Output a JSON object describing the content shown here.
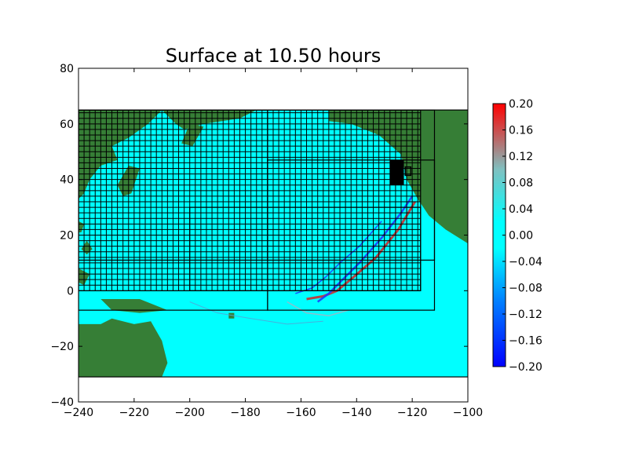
{
  "chart_data": {
    "type": "heatmap",
    "title": "Surface at 10.50 hours",
    "xlabel": "",
    "ylabel": "",
    "xlim": [
      -240,
      -100
    ],
    "ylim": [
      -40,
      80
    ],
    "x_ticks": [
      -240,
      -220,
      -200,
      -180,
      -160,
      -140,
      -120,
      -100
    ],
    "y_ticks": [
      -40,
      -20,
      0,
      20,
      40,
      60,
      80
    ],
    "x_tick_labels": [
      "−240",
      "−220",
      "−200",
      "−180",
      "−160",
      "−140",
      "−120",
      "−100"
    ],
    "y_tick_labels": [
      "−40",
      "−20",
      "0",
      "20",
      "40",
      "60",
      "80"
    ],
    "domain": {
      "x": [
        -240,
        -100
      ],
      "y": [
        -31,
        65
      ]
    },
    "colorbar": {
      "min": -0.2,
      "max": 0.2,
      "ticks": [
        -0.2,
        -0.16,
        -0.12,
        -0.08,
        -0.04,
        0.0,
        0.04,
        0.08,
        0.12,
        0.16,
        0.2
      ],
      "tick_labels": [
        "−0.20",
        "−0.16",
        "−0.12",
        "−0.08",
        "−0.04",
        "0.00",
        "0.04",
        "0.08",
        "0.12",
        "0.16",
        "0.20"
      ],
      "colors": [
        "#0000ff",
        "#0080ff",
        "#00ffff",
        "#00ffff",
        "#80c0c0",
        "#ff0000"
      ]
    },
    "colors": {
      "land": "#367e36",
      "water": "#00ffff",
      "grid": "#000000",
      "wave_pos": "#c83030",
      "wave_neg": "#1e3cff"
    },
    "refinement_grids": [
      {
        "name": "level1",
        "x": [
          -240,
          -100
        ],
        "y": [
          -31,
          65
        ]
      },
      {
        "name": "level2-west",
        "x": [
          -240,
          -172
        ],
        "y": [
          -7,
          65
        ]
      },
      {
        "name": "level2-east",
        "x": [
          -172,
          -112
        ],
        "y": [
          -7,
          65
        ]
      },
      {
        "name": "level3-west",
        "x": [
          -240,
          -172
        ],
        "y": [
          11,
          65
        ]
      },
      {
        "name": "level3-east",
        "x": [
          -172,
          -112
        ],
        "y": [
          11,
          47
        ]
      },
      {
        "name": "level4-north",
        "x": [
          -240,
          -117
        ],
        "y": [
          0,
          65
        ]
      },
      {
        "name": "level4-south",
        "x": [
          -200,
          -117
        ],
        "y": [
          0,
          30
        ]
      }
    ]
  }
}
